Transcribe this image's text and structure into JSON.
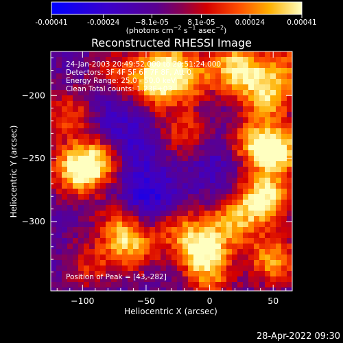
{
  "chart_data": {
    "type": "heatmap",
    "title": "Reconstructed RHESSI Image",
    "xlabel": "Heliocentric X (arcsec)",
    "ylabel": "Heliocentric Y (arcsec)",
    "xlim": [
      -125,
      65
    ],
    "ylim": [
      -355,
      -165
    ],
    "x_ticks": [
      -100,
      -50,
      0,
      50
    ],
    "x_tick_labels": [
      "−100",
      "−50",
      "0",
      "50"
    ],
    "y_ticks": [
      -300,
      -250,
      -200
    ],
    "y_tick_labels": [
      "−300",
      "−250",
      "−200"
    ],
    "colorbar": {
      "range": [
        -0.00041,
        0.00041
      ],
      "ticks": [
        -0.00041,
        -0.00024,
        -8.1e-05,
        8.1e-05,
        0.00024,
        0.00041
      ],
      "tick_labels": [
        "-0.00041",
        "-0.00024",
        "−8.1e-05",
        "8.1e-05",
        "0.00024",
        "0.00041"
      ],
      "units_text": "(photons cm",
      "units_exp1": "−2",
      "units_mid": " s",
      "units_exp2": "−1",
      "units_mid2": " asec",
      "units_exp3": "−2",
      "units_end": ")"
    },
    "annotations": {
      "time": "24-Jan-2003 20:49:52.000 to 20:51:24.000",
      "detectors": "Detectors: 3F 4F 5F 6F 7F 8F, Att 0",
      "energy": "Energy Range: 25.0 - 50.0 keV",
      "clean": "Clean     Total counts: 1.23E+03",
      "peak": "Position of Peak = [43,-282]"
    },
    "peak_position": [
      43,
      -282
    ],
    "hot_regions": [
      {
        "x": -42,
        "y": -190,
        "level": 0.95
      },
      {
        "x": -15,
        "y": -185,
        "level": 0.6
      },
      {
        "x": 22,
        "y": -178,
        "level": 0.9
      },
      {
        "x": 45,
        "y": -200,
        "level": 0.8
      },
      {
        "x": -105,
        "y": -260,
        "level": 0.85
      },
      {
        "x": -88,
        "y": -252,
        "level": 0.7
      },
      {
        "x": -70,
        "y": -305,
        "level": 0.6
      },
      {
        "x": -60,
        "y": -322,
        "level": 0.55
      },
      {
        "x": -25,
        "y": -305,
        "level": 0.5
      },
      {
        "x": -5,
        "y": -322,
        "level": 0.85
      },
      {
        "x": 18,
        "y": -300,
        "level": 0.65
      },
      {
        "x": 43,
        "y": -282,
        "level": 1.0
      },
      {
        "x": 55,
        "y": -245,
        "level": 0.85
      },
      {
        "x": 35,
        "y": -238,
        "level": 0.7
      },
      {
        "x": 50,
        "y": -330,
        "level": 0.75
      },
      {
        "x": -110,
        "y": -215,
        "level": 0.55
      },
      {
        "x": -20,
        "y": -230,
        "level": 0.5
      },
      {
        "x": -35,
        "y": -170,
        "level": 0.45
      },
      {
        "x": -95,
        "y": -335,
        "level": 0.4
      },
      {
        "x": 0,
        "y": -345,
        "level": 0.5
      },
      {
        "x": 60,
        "y": -175,
        "level": 0.5
      },
      {
        "x": -75,
        "y": -180,
        "level": 0.4
      }
    ],
    "cold_regions": [
      {
        "x": -48,
        "y": -282,
        "level": 0.6
      },
      {
        "x": -60,
        "y": -240,
        "level": 0.35
      },
      {
        "x": -80,
        "y": -215,
        "level": 0.3
      },
      {
        "x": 5,
        "y": -255,
        "level": 0.3
      }
    ]
  },
  "footer": {
    "timestamp": "28-Apr-2022 09:30"
  }
}
